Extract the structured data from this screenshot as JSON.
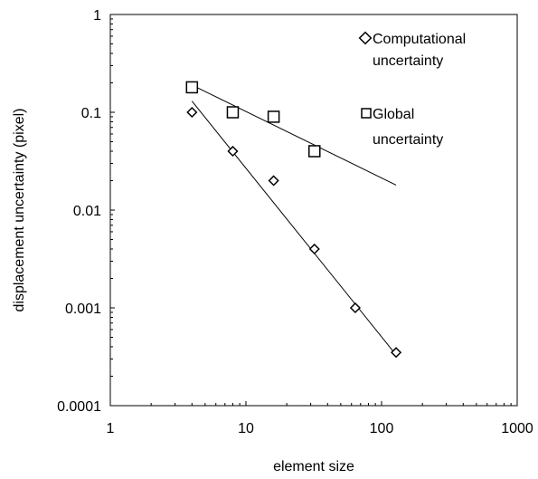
{
  "chart_data": {
    "type": "scatter",
    "x_scale": "log",
    "y_scale": "log",
    "xlabel": "element size",
    "ylabel": "displacement uncertainty (pixel)",
    "xlim": [
      1,
      1000
    ],
    "ylim": [
      0.0001,
      1
    ],
    "x_ticks": [
      1,
      10,
      100,
      1000
    ],
    "x_tick_labels": [
      "1",
      "10",
      "100",
      "1000"
    ],
    "y_ticks": [
      0.0001,
      0.001,
      0.01,
      0.1,
      1
    ],
    "y_tick_labels": [
      "0.0001",
      "0.001",
      "0.01",
      "0.1",
      "1"
    ],
    "grid": false,
    "legend_position": "top-right",
    "series": [
      {
        "name": "Computational uncertainty",
        "legend_lines": [
          "Computational",
          "uncertainty"
        ],
        "marker": "diamond",
        "x": [
          4,
          8,
          16,
          32,
          64,
          128
        ],
        "y": [
          0.1,
          0.04,
          0.02,
          0.004,
          0.001,
          0.00035
        ],
        "trendline": {
          "x": [
            4,
            128
          ],
          "y": [
            0.13,
            0.00033
          ]
        }
      },
      {
        "name": "Global uncertainty",
        "legend_lines": [
          "Global",
          "uncertainty"
        ],
        "marker": "square",
        "x": [
          4,
          8,
          16,
          32
        ],
        "y": [
          0.18,
          0.1,
          0.09,
          0.04
        ],
        "trendline": {
          "x": [
            4,
            128
          ],
          "y": [
            0.19,
            0.018
          ]
        }
      }
    ]
  }
}
